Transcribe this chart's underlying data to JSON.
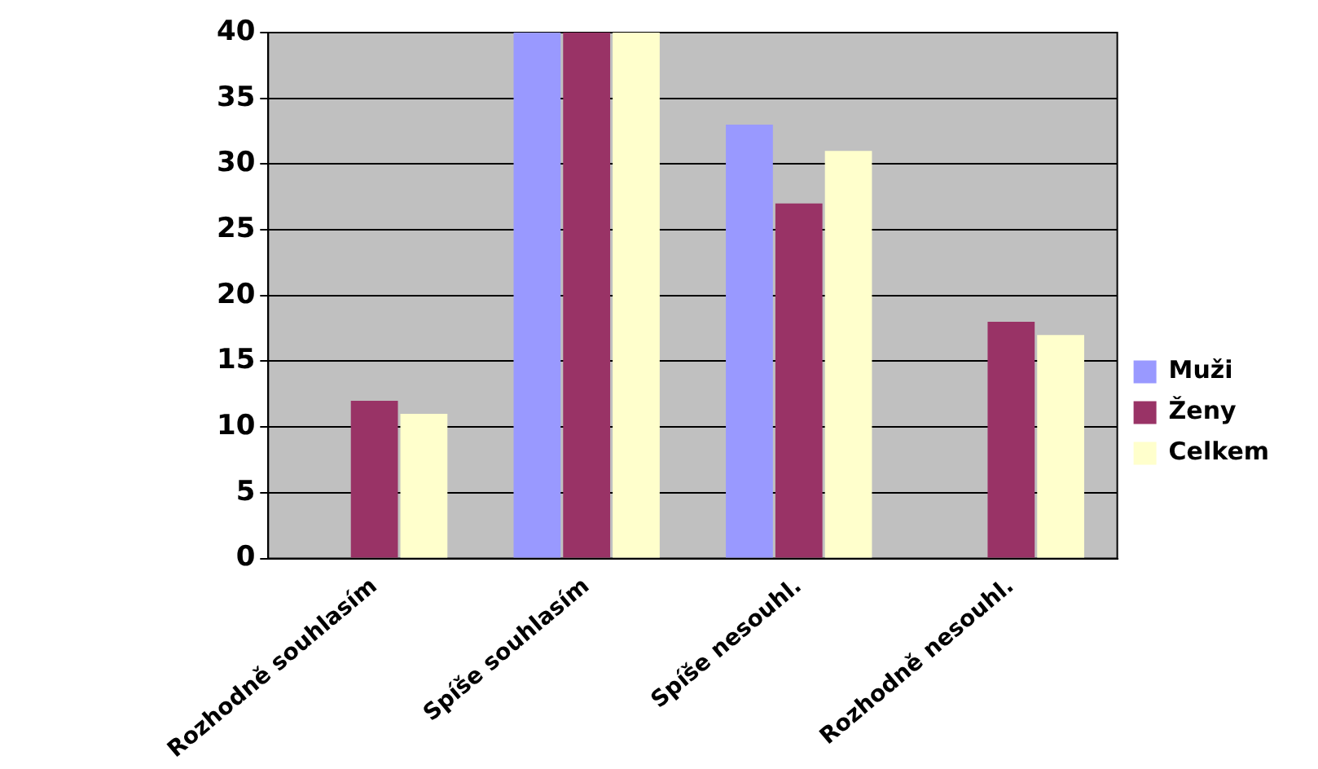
{
  "chart_data": {
    "type": "bar",
    "categories": [
      "Rozhodně souhlasím",
      "Spíše souhlasím",
      "Spíše nesouhl.",
      "Rozhodně nesouhl."
    ],
    "series": [
      {
        "name": "Muži",
        "color": "#9999ff",
        "values": [
          0,
          40,
          33,
          0
        ]
      },
      {
        "name": "Ženy",
        "color": "#993366",
        "values": [
          12,
          40,
          27,
          18
        ]
      },
      {
        "name": "Celkem",
        "color": "#ffffcc",
        "values": [
          11,
          40,
          31,
          17
        ]
      }
    ],
    "ylim": [
      0,
      40
    ],
    "yticks": [
      0,
      5,
      10,
      15,
      20,
      25,
      30,
      35,
      40
    ],
    "grid": "y",
    "legend": "right"
  }
}
